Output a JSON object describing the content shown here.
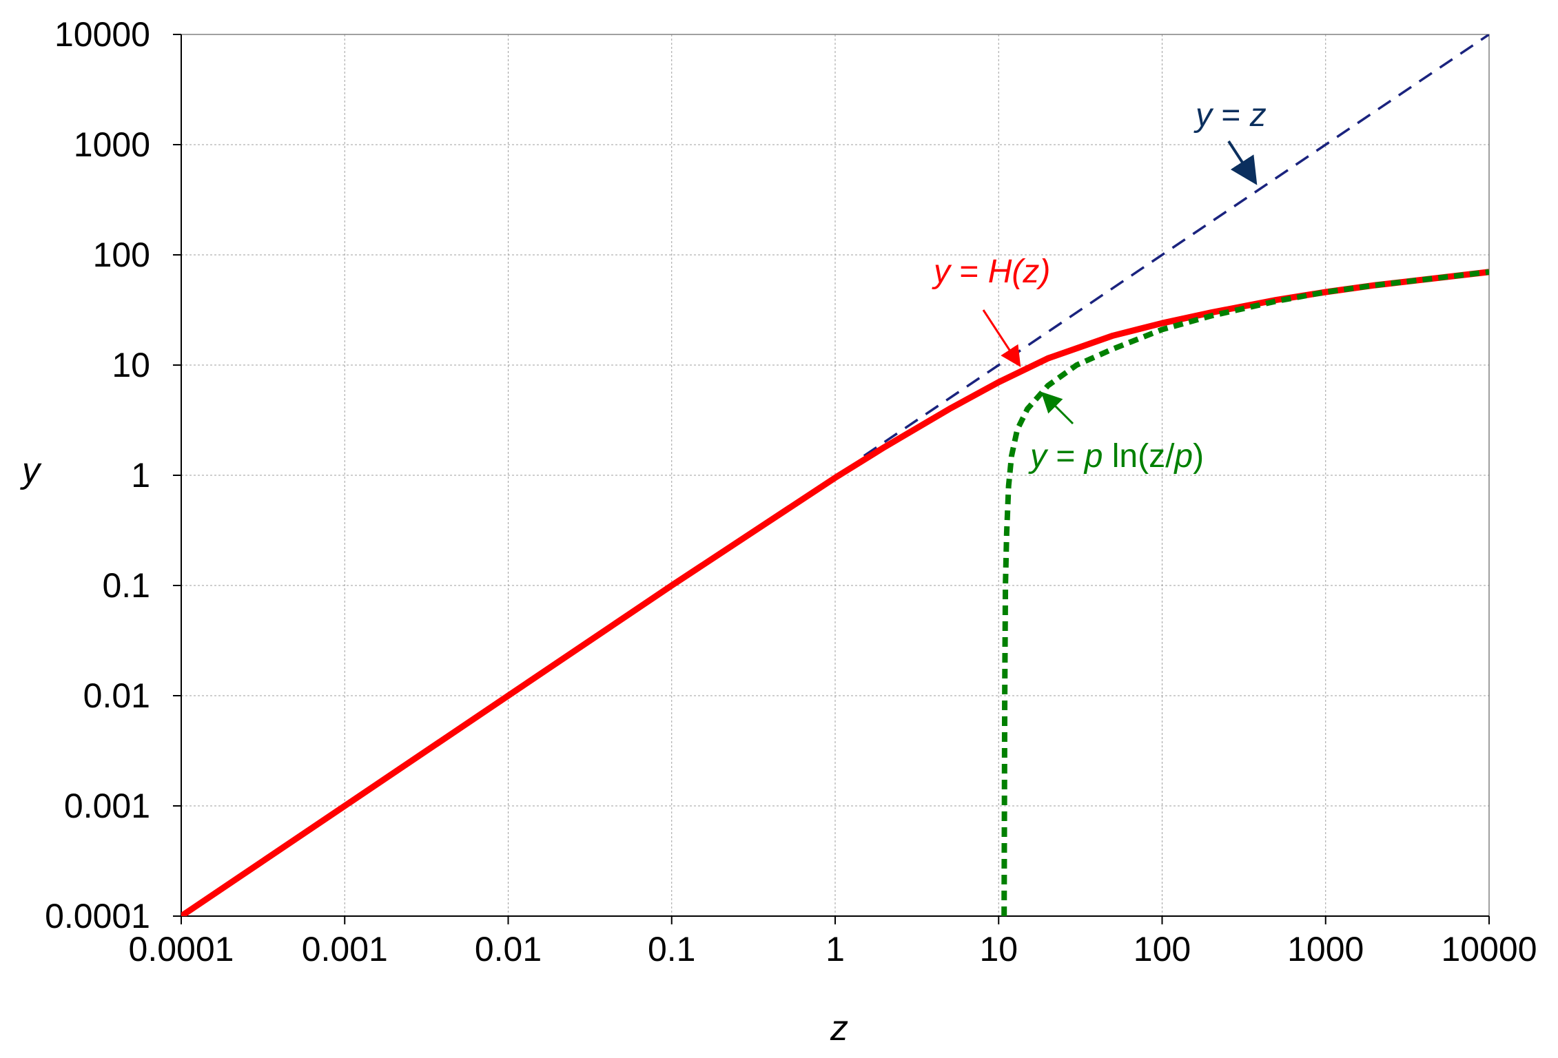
{
  "chart_data": {
    "type": "line",
    "xscale": "log",
    "yscale": "log",
    "xlim": [
      0.0001,
      10000
    ],
    "ylim": [
      0.0001,
      10000
    ],
    "grid": true,
    "xlabel": "z",
    "ylabel": "y",
    "xticks": [
      "0.0001",
      "0.001",
      "0.01",
      "0.1",
      "1",
      "10",
      "100",
      "1000",
      "10000"
    ],
    "yticks": [
      "0.0001",
      "0.001",
      "0.01",
      "0.1",
      "1",
      "10",
      "100",
      "1000",
      "10000"
    ],
    "series": [
      {
        "name": "y = z",
        "color": "#1a237e",
        "style": "dashed",
        "x": [
          1.5,
          10,
          100,
          1000,
          10000
        ],
        "y": [
          1.5,
          10,
          100,
          1000,
          10000
        ]
      },
      {
        "name": "y = H(z)",
        "color": "#ff0000",
        "style": "solid",
        "x": [
          0.0001,
          0.001,
          0.01,
          0.1,
          1,
          2,
          5,
          10,
          20,
          50,
          100,
          200,
          500,
          1000,
          2000,
          5000,
          10000
        ],
        "y": [
          0.0001,
          0.001,
          0.01,
          0.1,
          0.95,
          1.8,
          4,
          7,
          11.5,
          18.5,
          24,
          30,
          39,
          46,
          53,
          62,
          70
        ]
      },
      {
        "name": "y = p ln(z/p)",
        "color": "#008000",
        "style": "dotted",
        "x": [
          10.8,
          10.9,
          11,
          11.2,
          11.5,
          12,
          13,
          15,
          20,
          30,
          50,
          100,
          200,
          500,
          1000,
          2000,
          5000,
          10000
        ],
        "y": [
          0.0001,
          0.01,
          0.1,
          0.3,
          0.8,
          1.5,
          2.6,
          4,
          6.5,
          10,
          14,
          21,
          28,
          38,
          46,
          53,
          62,
          70
        ]
      }
    ],
    "annotations": [
      {
        "series": "y = z",
        "color": "#0b2f5e",
        "parts": [
          {
            "text": "y",
            "italic": true
          },
          {
            "text": " = ",
            "italic": false
          },
          {
            "text": "z",
            "italic": true
          }
        ]
      },
      {
        "series": "y = H(z)",
        "color": "#ff0000",
        "parts": [
          {
            "text": "y",
            "italic": true
          },
          {
            "text": " = ",
            "italic": false
          },
          {
            "text": "H(z)",
            "italic": true
          }
        ]
      },
      {
        "series": "y = p ln(z/p)",
        "color": "#008000",
        "parts": [
          {
            "text": "y",
            "italic": true
          },
          {
            "text": " = ",
            "italic": false
          },
          {
            "text": "p",
            "italic": true
          },
          {
            "text": " ln(z/",
            "italic": false
          },
          {
            "text": "p",
            "italic": true
          },
          {
            "text": ")",
            "italic": false
          }
        ]
      }
    ]
  }
}
